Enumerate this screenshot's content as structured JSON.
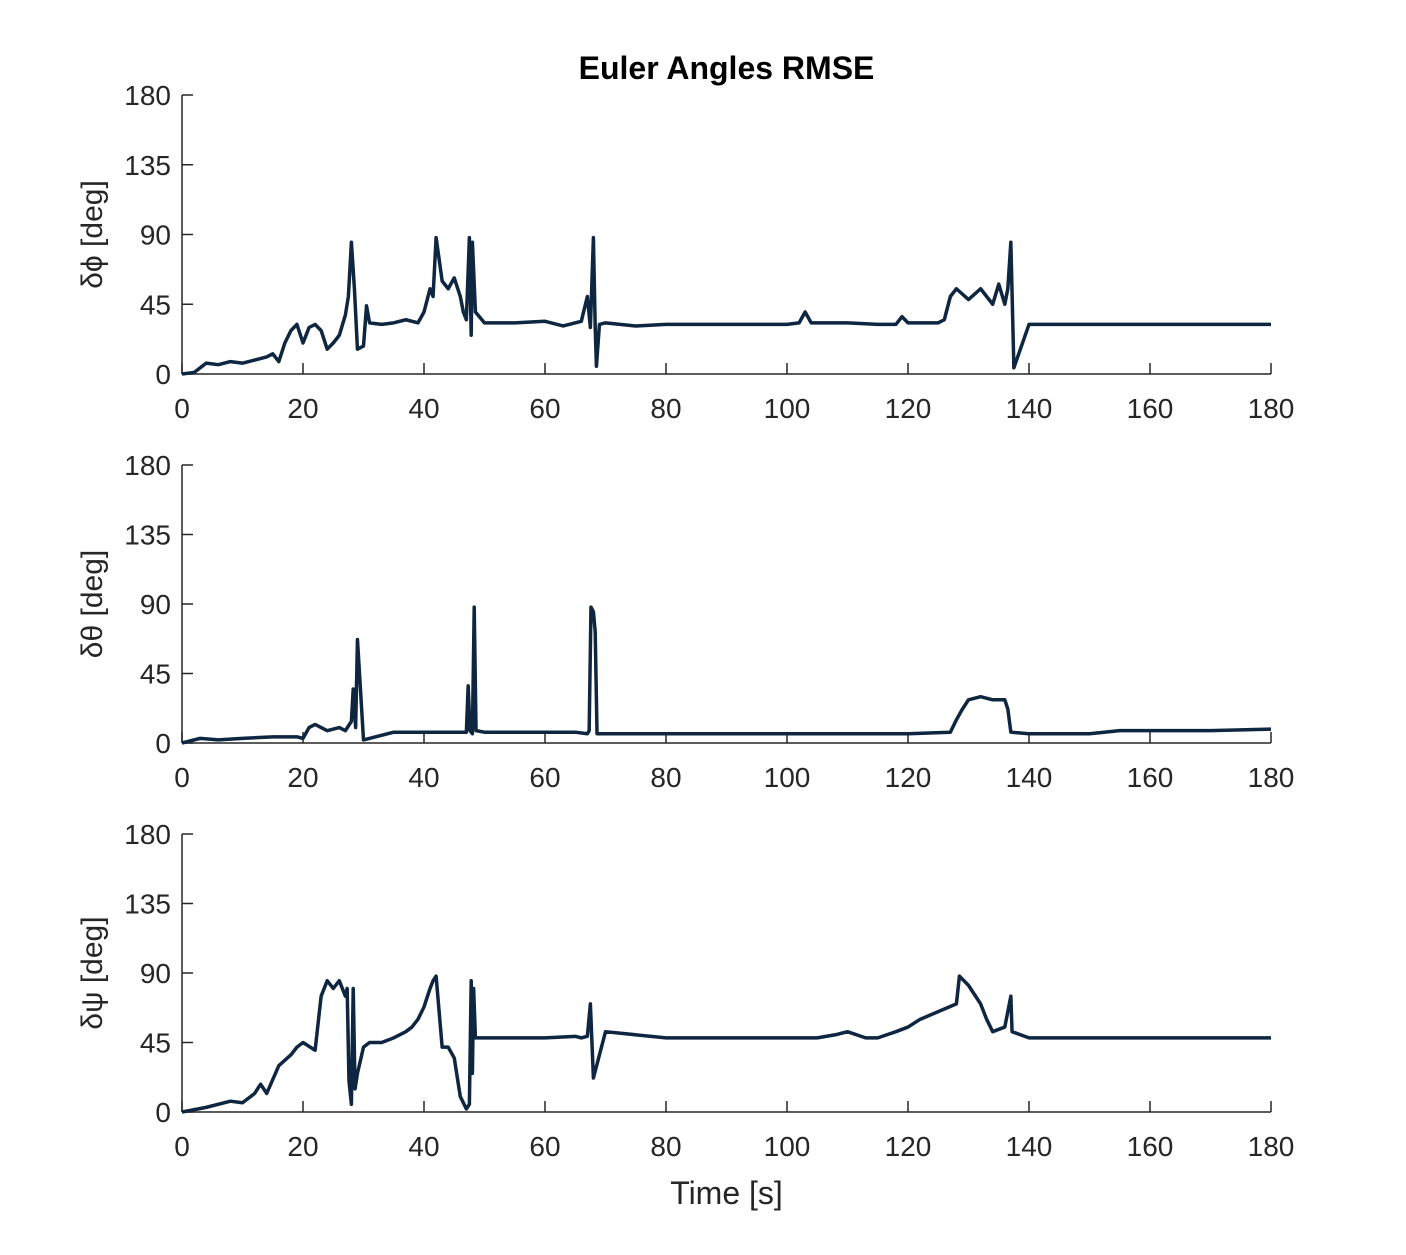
{
  "chart_data": [
    {
      "type": "line",
      "title": "Euler Angles RMSE",
      "y_label": "δϕ [deg]",
      "xlim": [
        0,
        180
      ],
      "xticks": [
        0,
        20,
        40,
        60,
        80,
        100,
        120,
        140,
        160,
        180
      ],
      "ylim": [
        0,
        180
      ],
      "yticks": [
        0,
        45,
        90,
        135,
        180
      ],
      "series": [
        {
          "color": "#0f2640",
          "x": [
            0,
            2,
            4,
            6,
            8,
            10,
            12,
            14,
            15,
            16,
            17,
            18,
            19,
            20,
            21,
            22,
            23,
            24,
            25,
            26,
            27,
            27.5,
            28,
            28.5,
            29,
            30,
            30.5,
            31,
            33,
            35,
            37,
            39,
            40,
            41,
            41.5,
            42,
            43,
            44,
            45,
            46,
            46.5,
            47,
            47.5,
            47.8,
            48,
            48.5,
            50,
            55,
            60,
            63,
            66,
            67,
            67.5,
            68,
            68.3,
            68.5,
            69,
            70,
            75,
            80,
            90,
            100,
            102,
            103,
            104,
            110,
            115,
            118,
            119,
            120,
            125,
            126,
            127,
            128,
            130,
            132,
            134,
            135,
            136,
            136.5,
            137,
            137.5,
            140,
            160,
            180
          ],
          "values": [
            0,
            1,
            7,
            6,
            8,
            7,
            9,
            11,
            13,
            8,
            20,
            28,
            32,
            20,
            30,
            32,
            28,
            16,
            20,
            25,
            38,
            50,
            85,
            55,
            16,
            18,
            44,
            33,
            32,
            33,
            35,
            33,
            40,
            55,
            50,
            88,
            60,
            55,
            62,
            50,
            40,
            35,
            88,
            25,
            85,
            40,
            33,
            33,
            34,
            31,
            34,
            50,
            30,
            88,
            30,
            5,
            32,
            33,
            31,
            32,
            32,
            32,
            33,
            40,
            33,
            33,
            32,
            32,
            37,
            33,
            33,
            35,
            50,
            55,
            48,
            55,
            45,
            58,
            45,
            55,
            85,
            4,
            32,
            32,
            32
          ]
        }
      ]
    },
    {
      "type": "line",
      "y_label": "δθ [deg]",
      "xlim": [
        0,
        180
      ],
      "xticks": [
        0,
        20,
        40,
        60,
        80,
        100,
        120,
        140,
        160,
        180
      ],
      "ylim": [
        0,
        180
      ],
      "yticks": [
        0,
        45,
        90,
        135,
        180
      ],
      "series": [
        {
          "color": "#0f2640",
          "x": [
            0,
            3,
            6,
            10,
            15,
            19,
            20,
            21,
            22,
            24,
            26,
            27,
            28,
            28.3,
            28.7,
            29,
            30,
            35,
            40,
            45,
            47,
            47.3,
            47.6,
            48,
            48.3,
            48.6,
            50,
            55,
            60,
            65,
            67,
            67.3,
            67.6,
            68,
            68.3,
            68.6,
            70,
            80,
            100,
            120,
            127,
            128,
            129,
            130,
            132,
            134,
            136,
            136.5,
            137,
            140,
            150,
            155,
            160,
            170,
            180
          ],
          "values": [
            0,
            3,
            2,
            3,
            4,
            4,
            3,
            10,
            12,
            8,
            10,
            8,
            14,
            35,
            10,
            67,
            2,
            7,
            7,
            7,
            7,
            37,
            8,
            6,
            88,
            8,
            7,
            7,
            7,
            7,
            6,
            8,
            88,
            85,
            72,
            6,
            6,
            6,
            6,
            6,
            7,
            15,
            22,
            28,
            30,
            28,
            28,
            22,
            7,
            6,
            6,
            8,
            8,
            8,
            9
          ]
        }
      ]
    },
    {
      "type": "line",
      "y_label": "δψ [deg]",
      "x_label": "Time [s]",
      "xlim": [
        0,
        180
      ],
      "xticks": [
        0,
        20,
        40,
        60,
        80,
        100,
        120,
        140,
        160,
        180
      ],
      "ylim": [
        0,
        180
      ],
      "yticks": [
        0,
        45,
        90,
        135,
        180
      ],
      "series": [
        {
          "color": "#0f2640",
          "x": [
            0,
            4,
            8,
            10,
            12,
            13,
            14,
            16,
            18,
            19,
            20,
            22,
            23,
            24,
            25,
            26,
            27,
            27.3,
            27.6,
            28,
            28.3,
            28.6,
            29,
            30,
            31,
            33,
            35,
            37,
            38,
            39,
            40,
            41,
            41.5,
            42,
            43,
            44,
            45,
            46,
            47,
            47.5,
            47.8,
            48,
            48.2,
            48.5,
            50,
            55,
            60,
            65,
            66,
            67,
            67.5,
            68,
            70,
            80,
            100,
            105,
            108,
            110,
            113,
            115,
            118,
            120,
            122,
            125,
            128,
            128.5,
            130,
            132,
            133,
            134,
            136,
            137,
            137.2,
            140,
            160,
            180
          ],
          "values": [
            0,
            3,
            7,
            6,
            12,
            18,
            12,
            30,
            37,
            42,
            45,
            40,
            75,
            85,
            80,
            85,
            75,
            80,
            20,
            5,
            80,
            15,
            25,
            42,
            45,
            45,
            48,
            52,
            55,
            60,
            68,
            80,
            85,
            88,
            42,
            42,
            35,
            10,
            2,
            5,
            85,
            25,
            80,
            48,
            48,
            48,
            48,
            49,
            48,
            49,
            70,
            22,
            52,
            48,
            48,
            48,
            50,
            52,
            48,
            48,
            52,
            55,
            60,
            65,
            70,
            88,
            82,
            70,
            60,
            52,
            55,
            75,
            52,
            48,
            48,
            48
          ]
        }
      ]
    }
  ]
}
